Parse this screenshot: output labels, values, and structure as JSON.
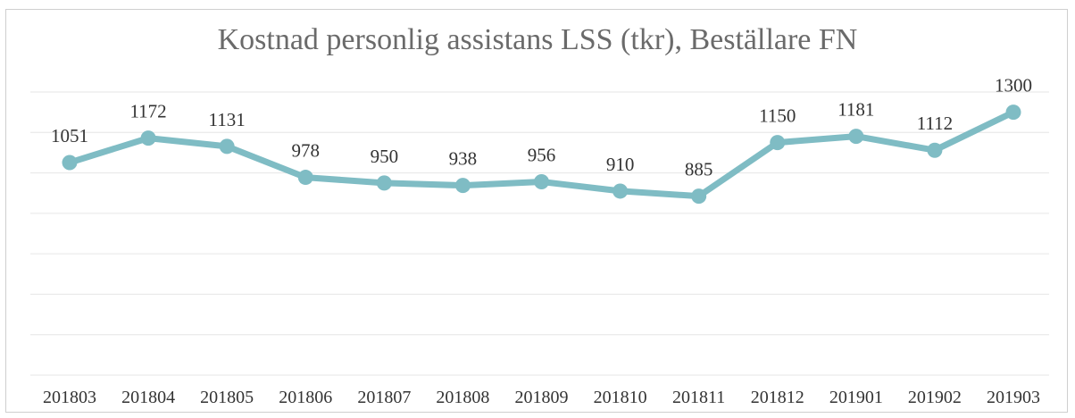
{
  "chart_data": {
    "type": "line",
    "title": "Kostnad personlig assistans LSS (tkr), Beställare FN",
    "xlabel": "",
    "ylabel": "",
    "categories": [
      "201803",
      "201804",
      "201805",
      "201806",
      "201807",
      "201808",
      "201809",
      "201810",
      "201811",
      "201812",
      "201901",
      "201902",
      "201903"
    ],
    "series": [
      {
        "values": [
          1051,
          1172,
          1131,
          978,
          950,
          938,
          956,
          910,
          885,
          1150,
          1181,
          1112,
          1300
        ]
      }
    ],
    "ylim": [
      0,
      1400
    ],
    "grid": true,
    "legend": "none",
    "data_labels": true,
    "colors": {
      "line": "#7fbcc4",
      "marker": "#7fbcc4",
      "gridline": "#e6e6e6",
      "title": "#6a6a6a"
    }
  }
}
